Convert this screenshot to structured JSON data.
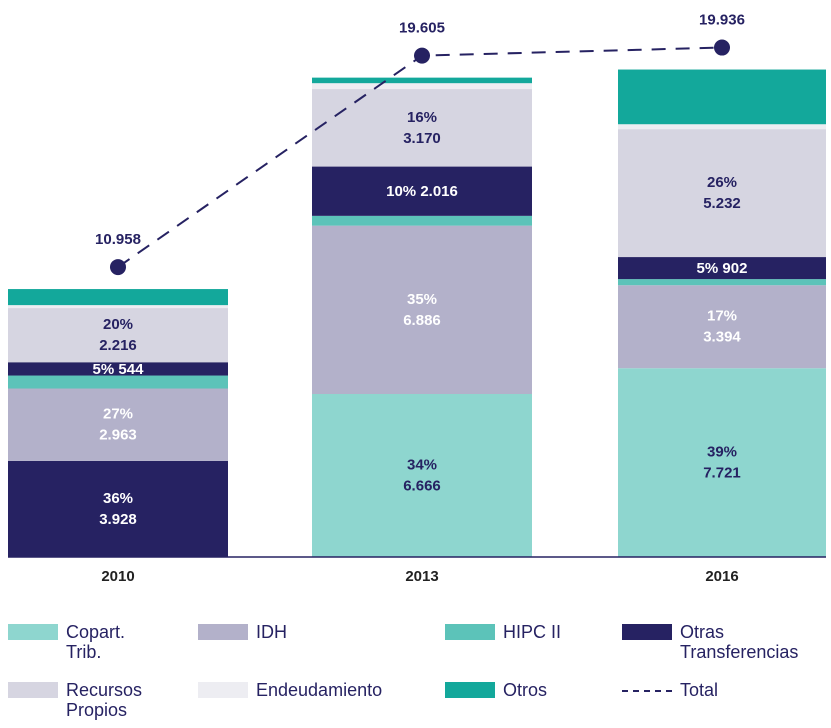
{
  "chart_data": {
    "type": "stacked_bar_line",
    "categories": [
      "2010",
      "2013",
      "2016"
    ],
    "ylim": [
      0,
      22780
    ],
    "series": [
      {
        "name": "Copart. Trib.",
        "color": "#8ed6cf",
        "colors": [
          "#262262",
          "#8ed6cf",
          "#8ed6cf"
        ],
        "label_colors": [
          "#ffffff",
          "#262262",
          "#262262"
        ],
        "values": [
          3928,
          6666,
          7721
        ],
        "value_labels": [
          "3.928",
          "6.666",
          "7.721"
        ],
        "share_labels": [
          "36%",
          "34%",
          "39%"
        ]
      },
      {
        "name": "IDH",
        "color": "#b3b1ca",
        "label_colors": [
          "#ffffff",
          "#ffffff",
          "#ffffff"
        ],
        "values": [
          2963,
          6886,
          3394
        ],
        "value_labels": [
          "2.963",
          "6.886",
          "3.394"
        ],
        "share_labels": [
          "27%",
          "35%",
          "17%"
        ]
      },
      {
        "name": "HIPC II",
        "color": "#5cc3b9",
        "values": [
          530,
          400,
          250
        ]
      },
      {
        "name": "Otras Transferencias",
        "color": "#262262",
        "label_colors": [
          "#ffffff",
          "#ffffff",
          "#ffffff"
        ],
        "inline": true,
        "values": [
          544,
          2016,
          902
        ],
        "value_labels": [
          "544",
          "2.016",
          "902"
        ],
        "share_labels": [
          "5%",
          "10%",
          "5%"
        ]
      },
      {
        "name": "Recursos Propios",
        "color": "#d6d5e1",
        "label_colors": [
          "#262262",
          "#262262",
          "#262262"
        ],
        "values": [
          2216,
          3170,
          5232
        ],
        "value_labels": [
          "2.216",
          "3.170",
          "5.232"
        ],
        "share_labels": [
          "20%",
          "16%",
          "26%"
        ]
      },
      {
        "name": "Endeudamiento",
        "color": "#ededf2",
        "values": [
          120,
          240,
          200
        ]
      },
      {
        "name": "Otros",
        "color": "#13a89b",
        "values": [
          657,
          227,
          2237
        ]
      }
    ],
    "line": {
      "name": "Total",
      "color": "#262262",
      "values": [
        10958,
        19605,
        19936
      ],
      "value_labels": [
        "10.958",
        "19.605",
        "19.936"
      ]
    }
  }
}
